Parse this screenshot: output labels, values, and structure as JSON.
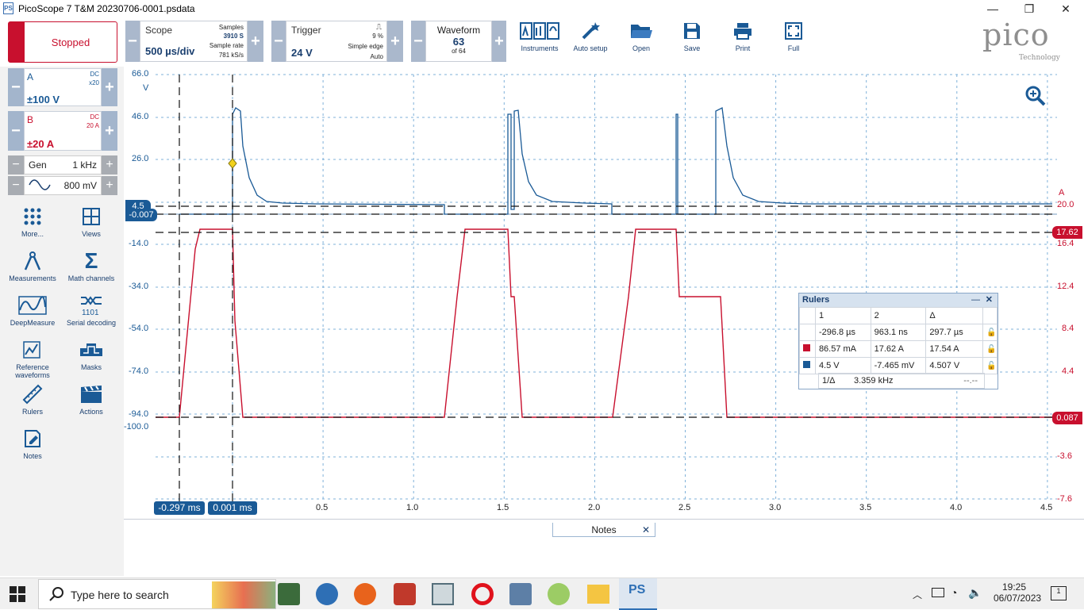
{
  "window": {
    "title": "PicoScope 7 T&M 20230706-0001.psdata",
    "app_icon": "PS"
  },
  "toolbar": {
    "status": "Stopped",
    "scope": {
      "label": "Scope",
      "value": "500 µs/div",
      "samples_label": "Samples",
      "samples_value": "3910 S",
      "rate_label": "Sample rate",
      "rate_value": "781 kS/s"
    },
    "trigger": {
      "label": "Trigger",
      "value": "24 V",
      "percent": "9 %",
      "type": "Simple edge",
      "mode": "Auto"
    },
    "waveform": {
      "label": "Waveform",
      "value": "63",
      "of": "of 64"
    },
    "buttons": [
      {
        "label": "Instruments",
        "icon": "instruments-icon"
      },
      {
        "label": "Auto setup",
        "icon": "auto-setup-icon"
      },
      {
        "label": "Open",
        "icon": "folder-icon"
      },
      {
        "label": "Save",
        "icon": "save-icon"
      },
      {
        "label": "Print",
        "icon": "print-icon"
      },
      {
        "label": "Full",
        "icon": "fullscreen-icon"
      }
    ],
    "brand": "pico",
    "brand_sub": "Technology"
  },
  "channels": [
    {
      "name": "A",
      "coupling": "DC",
      "probe": "x20",
      "range": "±100 V",
      "color": "#1a5a96"
    },
    {
      "name": "B",
      "coupling": "DC",
      "probe": "20 A",
      "range": "±20 A",
      "color": "#c8102e"
    }
  ],
  "generator": {
    "label": "Gen",
    "freq": "1 kHz",
    "amplitude": "800 mV"
  },
  "tools": [
    {
      "label": "More...",
      "icon": "more-icon"
    },
    {
      "label": "Views",
      "icon": "views-icon"
    },
    {
      "label": "Measurements",
      "icon": "measurements-icon"
    },
    {
      "label": "Math channels",
      "icon": "sigma-icon"
    },
    {
      "label": "DeepMeasure",
      "icon": "deepmeasure-icon"
    },
    {
      "label": "Serial decoding",
      "icon": "serial-decoding-icon"
    },
    {
      "label": "Reference waveforms",
      "icon": "reference-waveforms-icon"
    },
    {
      "label": "Masks",
      "icon": "masks-icon"
    },
    {
      "label": "Rulers",
      "icon": "rulers-icon"
    },
    {
      "label": "Actions",
      "icon": "actions-icon"
    },
    {
      "label": "Notes",
      "icon": "notes-icon"
    }
  ],
  "plot": {
    "left_axis_unit": "V",
    "left_ticks": [
      "66.0",
      "46.0",
      "26.0",
      "-14.0",
      "-34.0",
      "-54.0",
      "-74.0",
      "-94.0",
      "-100.0"
    ],
    "right_axis_unit": "A",
    "right_ticks": [
      "20.0",
      "16.4",
      "12.4",
      "8.4",
      "4.4",
      "-3.6",
      "-7.6"
    ],
    "x_ticks": [
      "0.5",
      "1.0",
      "1.5",
      "2.0",
      "2.5",
      "3.0",
      "3.5",
      "4.0",
      "4.5"
    ],
    "ruler_tags": {
      "a_top": "4.5",
      "a_bottom": "-0.007",
      "b_top": "17.62",
      "b_bottom": "0.087",
      "t1": "-0.297 ms",
      "t2": "0.001 ms"
    }
  },
  "rulers_panel": {
    "title": "Rulers",
    "headers": [
      "1",
      "2",
      "Δ"
    ],
    "rows": [
      {
        "c1": "-296.8 µs",
        "c2": "963.1 ns",
        "c3": "297.7 µs"
      },
      {
        "c1": "86.57 mA",
        "c2": "17.62 A",
        "c3": "17.54 A",
        "color": "#c8102e"
      },
      {
        "c1": "4.5 V",
        "c2": "-7.465 mV",
        "c3": "4.507 V",
        "color": "#1a5a96"
      }
    ],
    "freq_label": "1/Δ",
    "freq_value": "3.359 kHz",
    "extra": "--.--"
  },
  "notes_tab": {
    "label": "Notes"
  },
  "taskbar": {
    "search_placeholder": "Type here to search",
    "time": "19:25",
    "date": "06/07/2023",
    "notif": "1"
  }
}
